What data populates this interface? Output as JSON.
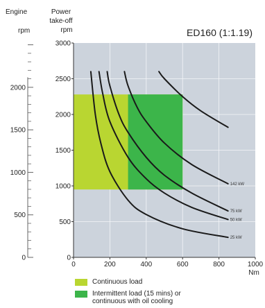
{
  "chart_data": {
    "type": "line",
    "title": "ED160 (1:1.19)",
    "ratio": 1.19,
    "left_axis": {
      "label_line1": "Engine",
      "label_line2": "rpm",
      "ticks": [
        0,
        500,
        1000,
        1500,
        2000
      ]
    },
    "y_axis": {
      "label_line1": "Power",
      "label_line2": "take-off",
      "label_line3": "rpm",
      "range": [
        0,
        3000
      ],
      "ticks": [
        0,
        500,
        1000,
        1500,
        2000,
        2500,
        3000
      ]
    },
    "x_axis": {
      "label": "Nm",
      "range": [
        0,
        1000
      ],
      "ticks": [
        0,
        200,
        400,
        600,
        800,
        1000
      ]
    },
    "colors": {
      "plot_bg": "#ccd3dc",
      "grid": "#f4f6f8",
      "continuous": "#b9d631",
      "intermittent": "#3cb54a",
      "curve": "#1a1a1a"
    },
    "regions": [
      {
        "name": "Continuous load",
        "x": [
          0,
          600
        ],
        "y": [
          950,
          2280
        ]
      },
      {
        "name": "Intermittent load",
        "x": [
          300,
          600
        ],
        "y": [
          950,
          2280
        ]
      }
    ],
    "series": [
      {
        "name": "25 kW",
        "values": [
          [
            95,
            2600
          ],
          [
            120,
            2000
          ],
          [
            150,
            1600
          ],
          [
            200,
            1200
          ],
          [
            300,
            800
          ],
          [
            400,
            600
          ],
          [
            600,
            400
          ],
          [
            850,
            280
          ]
        ]
      },
      {
        "name": "50 kW",
        "values": [
          [
            140,
            2600
          ],
          [
            160,
            2300
          ],
          [
            200,
            1900
          ],
          [
            300,
            1400
          ],
          [
            400,
            1100
          ],
          [
            500,
            900
          ],
          [
            650,
            700
          ],
          [
            850,
            530
          ]
        ]
      },
      {
        "name": "75 kW",
        "values": [
          [
            185,
            2600
          ],
          [
            200,
            2400
          ],
          [
            250,
            2000
          ],
          [
            300,
            1750
          ],
          [
            400,
            1400
          ],
          [
            500,
            1150
          ],
          [
            650,
            900
          ],
          [
            850,
            650
          ]
        ]
      },
      {
        "name": "142 kW",
        "values": [
          [
            280,
            2600
          ],
          [
            300,
            2400
          ],
          [
            350,
            2100
          ],
          [
            400,
            1900
          ],
          [
            500,
            1600
          ],
          [
            650,
            1300
          ],
          [
            850,
            1030
          ]
        ]
      },
      {
        "name": "",
        "values": [
          [
            470,
            2600
          ],
          [
            500,
            2500
          ],
          [
            600,
            2250
          ],
          [
            700,
            2050
          ],
          [
            850,
            1820
          ]
        ]
      }
    ],
    "curve_labels": [
      "25 kW",
      "50 kW",
      "75 kW",
      "142 kW"
    ],
    "legend": {
      "continuous": "Continuous load",
      "intermittent_line1": "Intermittent load (15 mins) or",
      "intermittent_line2": "continuous with oil cooling"
    }
  }
}
